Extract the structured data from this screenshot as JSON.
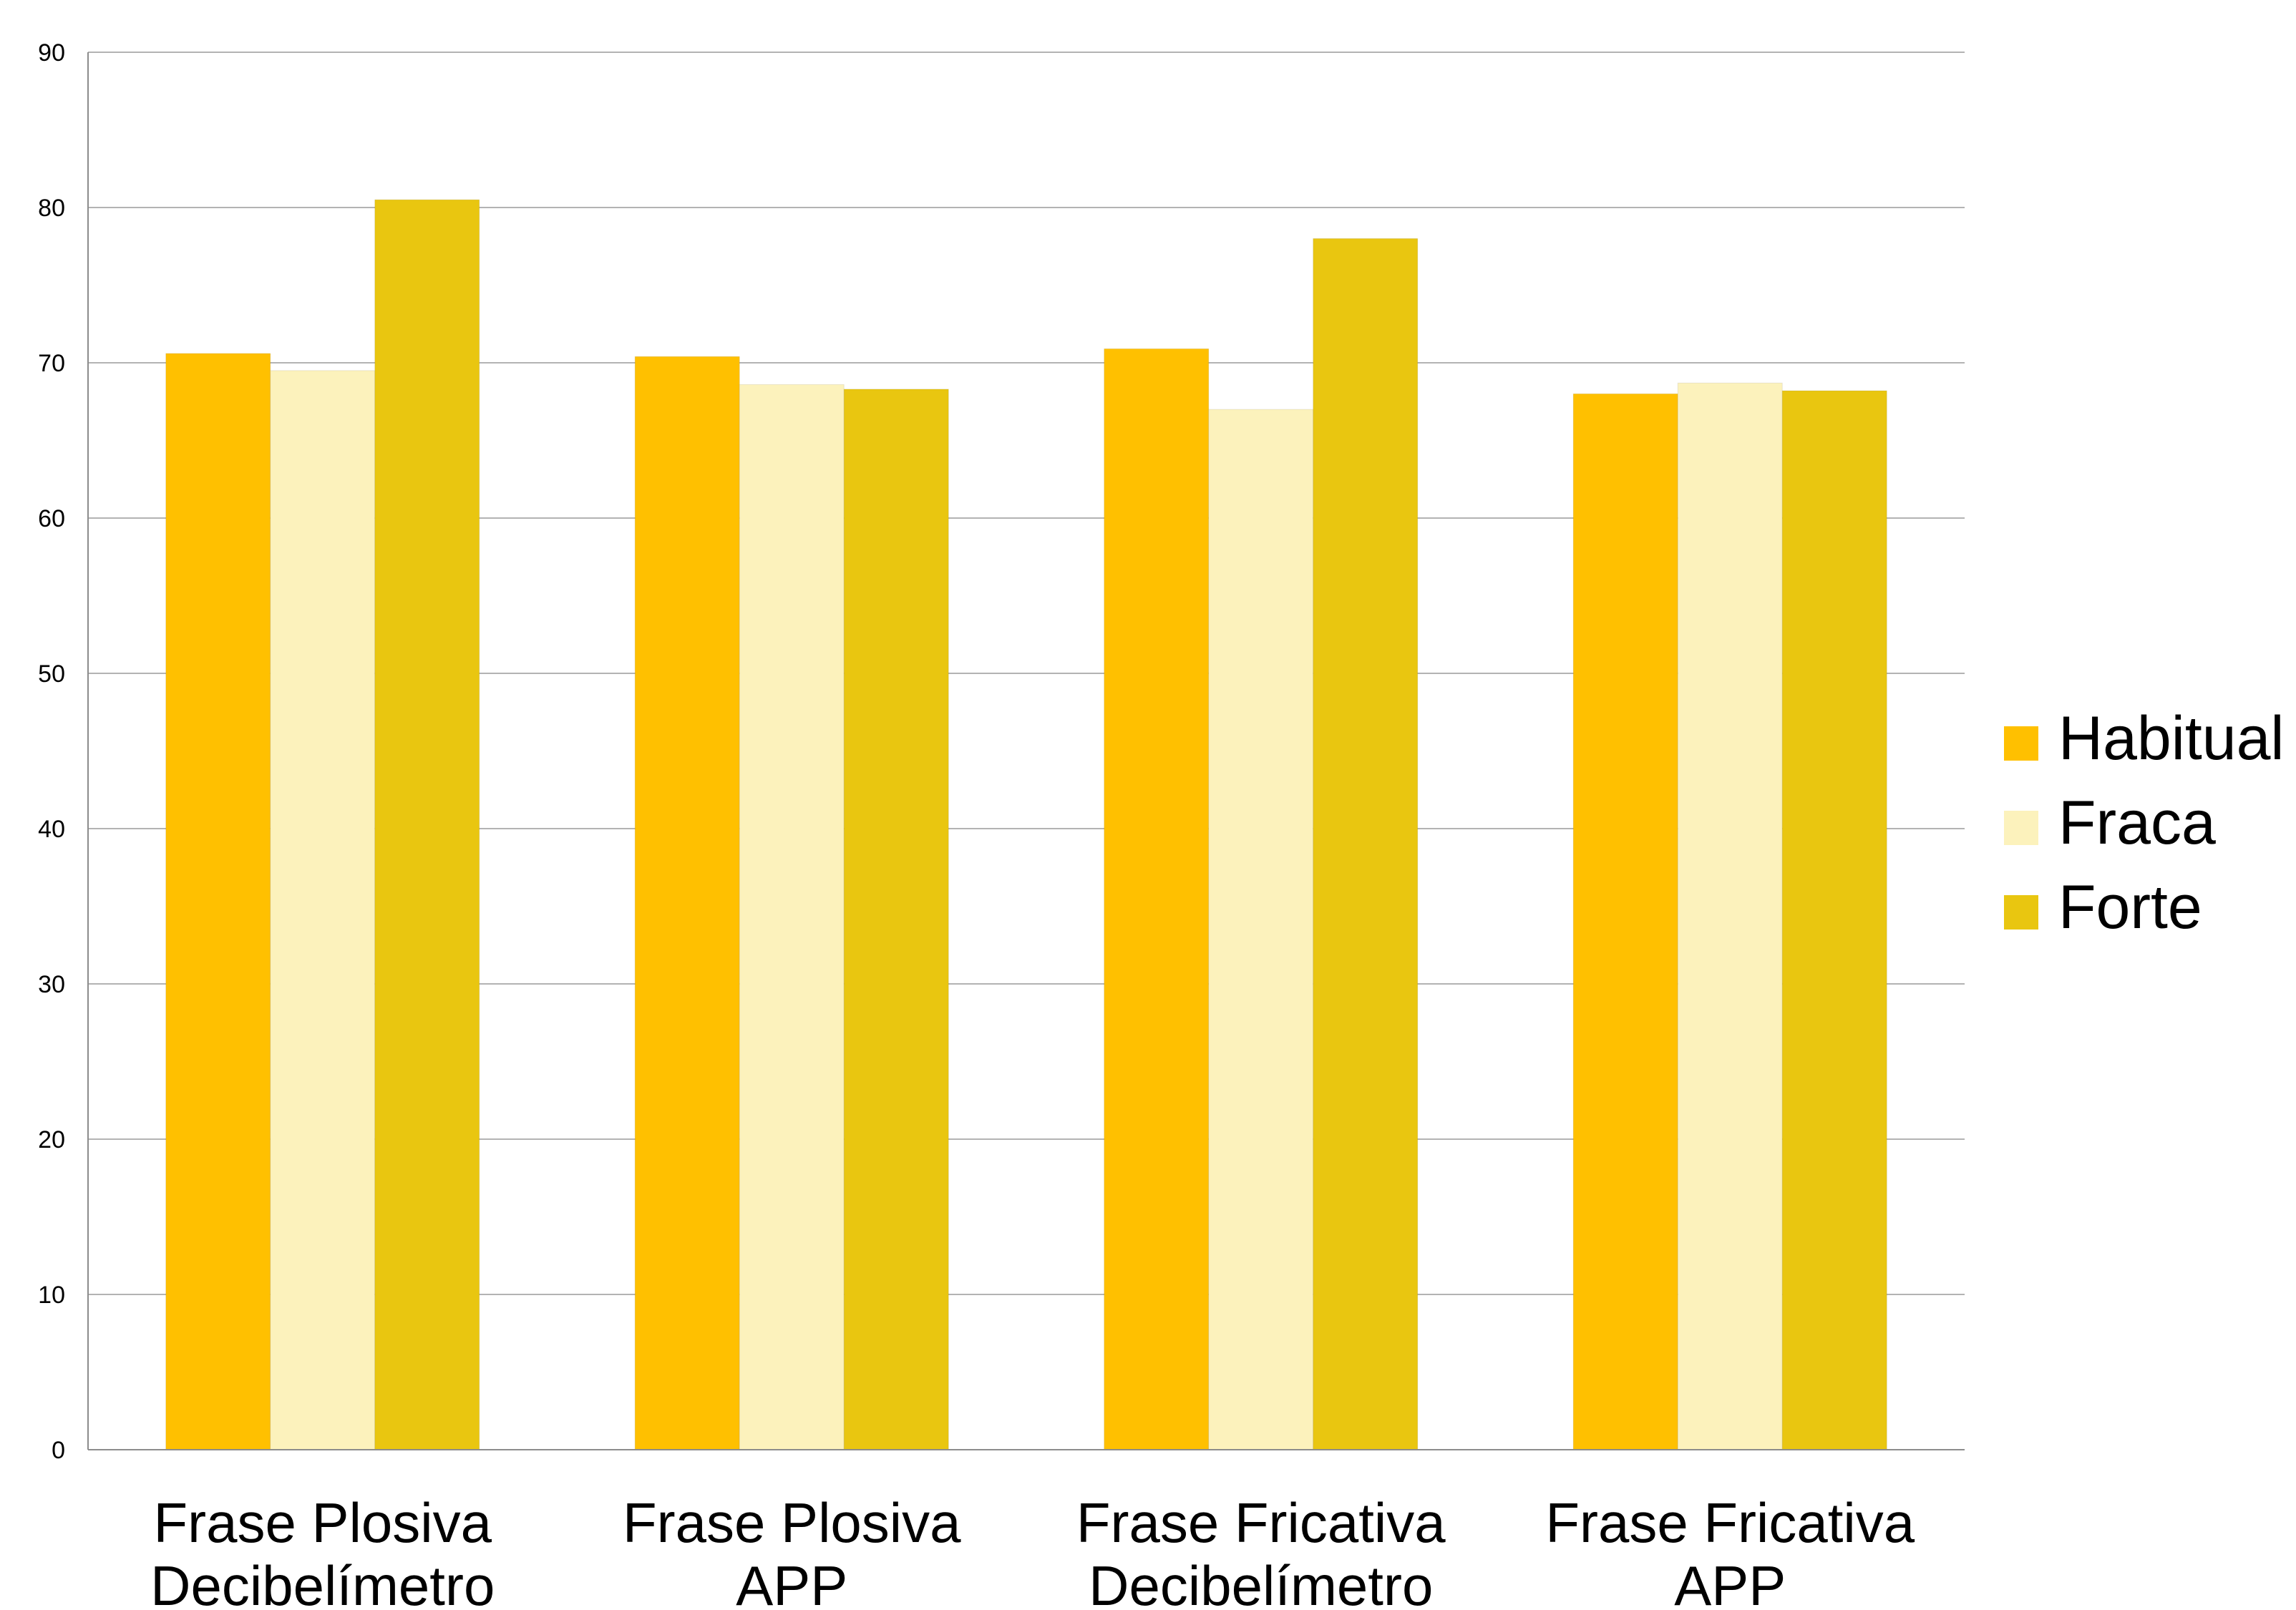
{
  "chart_data": {
    "type": "bar",
    "categories": [
      [
        "Frase Plosiva",
        "Decibelímetro"
      ],
      [
        "Frase Plosiva",
        "APP"
      ],
      [
        "Frase Fricativa",
        "Decibelímetro"
      ],
      [
        "Frase Fricativa",
        "APP"
      ]
    ],
    "series": [
      {
        "name": "Habitual",
        "values": [
          70.6,
          70.4,
          70.9,
          68.0
        ],
        "color": "#ffc000"
      },
      {
        "name": "Fraca",
        "values": [
          69.5,
          68.6,
          67.0,
          68.7
        ],
        "color": "#fcf2bc"
      },
      {
        "name": "Forte",
        "values": [
          80.5,
          68.3,
          78.0,
          68.2
        ],
        "color": "#e9c610"
      }
    ],
    "ylim": [
      0,
      90
    ],
    "yticks": [
      0,
      10,
      20,
      30,
      40,
      50,
      60,
      70,
      80,
      90
    ],
    "grid": true,
    "legend_position": "right",
    "title": "",
    "xlabel": "",
    "ylabel": ""
  }
}
